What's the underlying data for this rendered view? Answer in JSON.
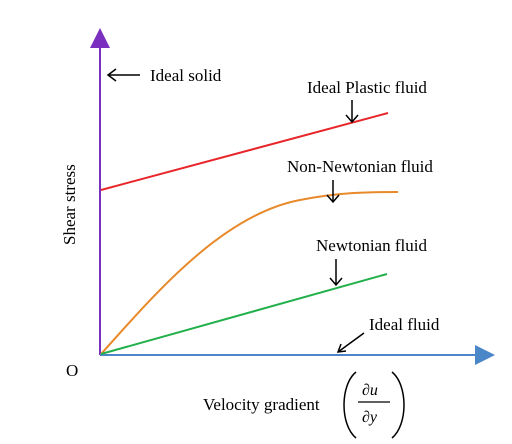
{
  "labels": {
    "ideal_solid": "Ideal solid",
    "ideal_plastic": "Ideal Plastic fluid",
    "non_newtonian": "Non-Newtonian fluid",
    "newtonian": "Newtonian fluid",
    "ideal_fluid": "Ideal fluid",
    "origin": "O",
    "y_axis": "Shear stress",
    "x_axis": "Velocity gradient",
    "frac_num": "∂u",
    "frac_den": "∂y"
  },
  "colors": {
    "y_axis": "#7b2fbf",
    "x_axis": "#4a86c8",
    "ideal_plastic": "#e8262a",
    "non_newtonian": "#e8892a",
    "newtonian": "#22b04b",
    "arrow": "#000000"
  }
}
